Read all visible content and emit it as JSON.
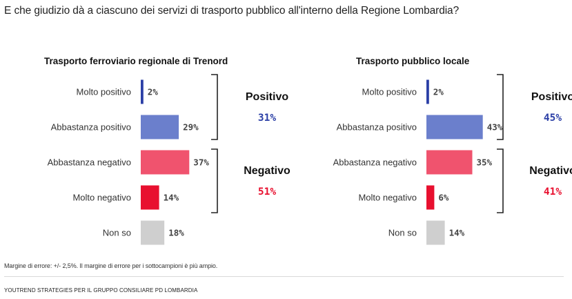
{
  "question": "E che giudizio dà a ciascuno dei servizi di trasporto pubblico all'interno della Regione Lombardia?",
  "note": "Margine di errore: +/- 2,5%. Il margine di errore per i sottocampioni è più ampio.",
  "footer": "YOUTREND STRATEGIES PER IL GRUPPO CONSILIARE PD LOMBARDIA",
  "colors": {
    "molto_positivo": "#2b3fa6",
    "abbastanza_positivo": "#6b7fcc",
    "abbastanza_negativo": "#f0536e",
    "molto_negativo": "#e8102f",
    "non_so": "#cfcfcf",
    "positivo_text": "#2b3fa6",
    "negativo_text": "#e8102f"
  },
  "chart_data": [
    {
      "type": "bar",
      "title": "Trasporto ferroviario regionale di Trenord",
      "categories": [
        "Molto positivo",
        "Abbastanza positivo",
        "Abbastanza negativo",
        "Molto negativo",
        "Non so"
      ],
      "values": [
        2,
        29,
        37,
        14,
        18
      ],
      "value_labels": [
        "2%",
        "29%",
        "37%",
        "14%",
        "18%"
      ],
      "groups": [
        {
          "label": "Positivo",
          "value": 31,
          "value_label": "31%",
          "categories": [
            "Molto positivo",
            "Abbastanza positivo"
          ]
        },
        {
          "label": "Negativo",
          "value": 51,
          "value_label": "51%",
          "categories": [
            "Abbastanza negativo",
            "Molto negativo"
          ]
        }
      ]
    },
    {
      "type": "bar",
      "title": "Trasporto pubblico locale",
      "categories": [
        "Molto positivo",
        "Abbastanza positivo",
        "Abbastanza negativo",
        "Molto negativo",
        "Non so"
      ],
      "values": [
        2,
        43,
        35,
        6,
        14
      ],
      "value_labels": [
        "2%",
        "43%",
        "35%",
        "6%",
        "14%"
      ],
      "groups": [
        {
          "label": "Positivo",
          "value": 45,
          "value_label": "45%",
          "categories": [
            "Molto positivo",
            "Abbastanza positivo"
          ]
        },
        {
          "label": "Negativo",
          "value": 41,
          "value_label": "41%",
          "categories": [
            "Abbastanza negativo",
            "Molto negativo"
          ]
        }
      ]
    }
  ]
}
